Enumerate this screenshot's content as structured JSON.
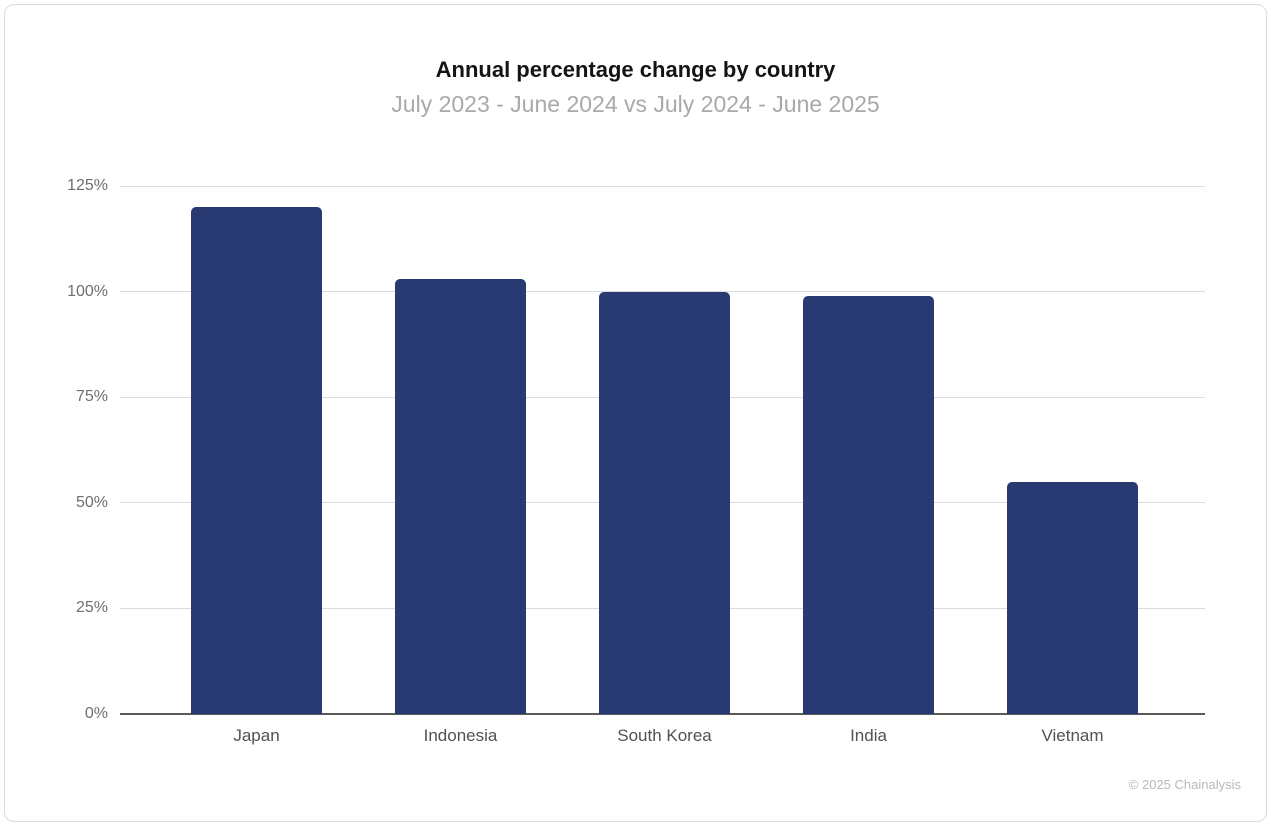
{
  "chart_data": {
    "type": "bar",
    "title": "Annual percentage change by country",
    "subtitle": "July 2023 - June 2024 vs July 2024 - June 2025",
    "categories": [
      "Japan",
      "Indonesia",
      "South Korea",
      "India",
      "Vietnam"
    ],
    "values": [
      120,
      103,
      100,
      99,
      55
    ],
    "unit": "%",
    "xlabel": "",
    "ylabel": "",
    "ylim": [
      0,
      125
    ],
    "yticks": [
      0,
      25,
      50,
      75,
      100,
      125
    ],
    "ytick_labels": [
      "0%",
      "25%",
      "50%",
      "75%",
      "100%",
      "125%"
    ],
    "grid": "horizontal",
    "legend": "none",
    "bar_color": "#293A72",
    "gridline_color": "#dcdcdc",
    "axis_line_color": "#595959"
  },
  "footer": {
    "credit": "© 2025 Chainalysis"
  }
}
